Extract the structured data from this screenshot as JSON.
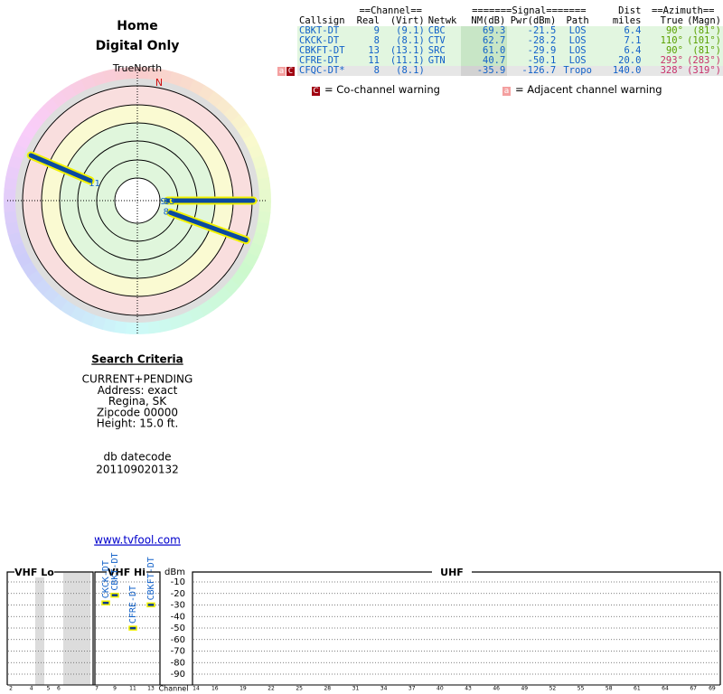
{
  "header": {
    "title": "Home",
    "subtitle": "Digital Only"
  },
  "table": {
    "group_headers": {
      "channel": "==Channel==",
      "signal": "=======Signal=======",
      "dist": "Dist",
      "azimuth": "==Azimuth=="
    },
    "columns": [
      "Callsign",
      "Real",
      "(Virt)",
      "Netwk",
      "NM(dB)",
      "Pwr(dBm)",
      "Path",
      "miles",
      "True",
      "(Magn)"
    ],
    "rows": [
      {
        "callsign": "CBKT-DT",
        "real": 9,
        "virt": "(9.1)",
        "netwk": "CBC",
        "nm": 69.3,
        "pwr": -21.5,
        "path": "LOS",
        "dist": 6.4,
        "az_true": {
          "value": 90,
          "label": "90°"
        },
        "az_magn": "(81°)"
      },
      {
        "callsign": "CKCK-DT",
        "real": 8,
        "virt": "(8.1)",
        "netwk": "CTV",
        "nm": 62.7,
        "pwr": -28.2,
        "path": "LOS",
        "dist": 7.1,
        "az_true": {
          "value": 110,
          "label": "110°"
        },
        "az_magn": "(101°)"
      },
      {
        "callsign": "CBKFT-DT",
        "real": 13,
        "virt": "(13.1)",
        "netwk": "SRC",
        "nm": {
          "value": 61,
          "label": "61.0"
        },
        "pwr": -29.9,
        "path": "LOS",
        "dist": 6.4,
        "az_true": {
          "value": 90,
          "label": "90°"
        },
        "az_magn": "(81°)"
      },
      {
        "callsign": "CFRE-DT",
        "real": 11,
        "virt": "(11.1)",
        "netwk": "GTN",
        "nm": 40.7,
        "pwr": -50.1,
        "path": "LOS",
        "dist": {
          "value": 20,
          "label": "20.0"
        },
        "az_true": {
          "value": 293,
          "label": "293°"
        },
        "az_magn": "(283°)"
      },
      {
        "warning_adjacent": "a",
        "warning_cochannel": "C",
        "callsign": "CFQC-DT*",
        "real": 8,
        "virt": "(8.1)",
        "nm": -35.9,
        "pwr": -126.7,
        "path": "Tropo",
        "dist": {
          "value": 140,
          "label": "140.0"
        },
        "az_true": {
          "value": 328,
          "label": "328°"
        },
        "az_magn": "(319°)"
      }
    ]
  },
  "legend": {
    "cochannel": {
      "icon": "C",
      "text": "= Co-channel warning"
    },
    "adjacent": {
      "icon": "a",
      "text": "= Adjacent channel warning"
    }
  },
  "polar": {
    "true_north": "TrueNorth",
    "magnetic_north": "N"
  },
  "search": {
    "title": "Search Criteria",
    "lines": [
      "CURRENT+PENDING",
      "Address: exact",
      "Regina, SK",
      "Zipcode 00000",
      "Height: 15.0 ft."
    ],
    "datecode_label": "db datecode",
    "datecode": "201109020132",
    "link": "www.tvfool.com"
  },
  "spectrum": {
    "bands": {
      "vhf_lo": "VHF Lo",
      "vhf_hi": "VHF Hi",
      "uhf": "UHF"
    },
    "y_label": "dBm",
    "x_label": "Channel",
    "yticks": [
      -10,
      -20,
      -30,
      -40,
      -50,
      -60,
      -70,
      -80,
      -90
    ],
    "channel_ticks": [
      2,
      4,
      5,
      6,
      7,
      9,
      11,
      13,
      14,
      16,
      19,
      22,
      25,
      28,
      31,
      34,
      37,
      40,
      43,
      46,
      49,
      52,
      55,
      58,
      61,
      64,
      67,
      69
    ]
  }
}
